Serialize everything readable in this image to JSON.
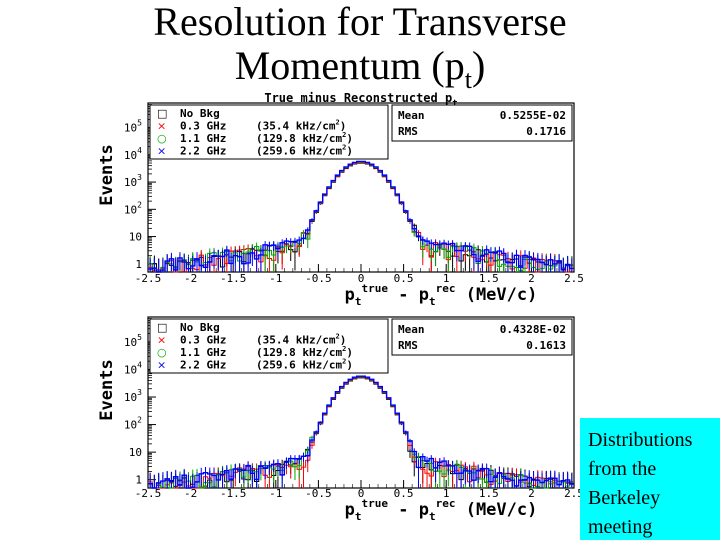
{
  "slide": {
    "title_line1": "Resolution for Transverse",
    "title_line2_pre": "Momentum (p",
    "title_line2_sub": "t",
    "title_line2_post": ")",
    "note_lines": [
      "Distributions",
      " from the",
      " Berkeley",
      " meeting"
    ]
  },
  "chart_data": [
    {
      "type": "histogram",
      "title": "True minus Reconstructed p",
      "title_sub": "t",
      "ylabel": "Events",
      "xlabel": {
        "p1": "p",
        "sub1": "t",
        "sup1": "true",
        "mid": " - ",
        "p2": "p",
        "sub2": "t",
        "sup2": "rec",
        "unit": " (MeV/c)"
      },
      "ylog": true,
      "xlim": [
        -2.5,
        2.5
      ],
      "ylim": [
        0.5,
        800000
      ],
      "xticks": [
        "-2.5",
        "-2",
        "-1.5",
        "-1",
        "-0.5",
        "0",
        "0.5",
        "1",
        "1.5",
        "2",
        "2.5"
      ],
      "yticks": [
        {
          "base": "1",
          "exp": ""
        },
        {
          "base": "10",
          "exp": ""
        },
        {
          "base": "10",
          "exp": "2"
        },
        {
          "base": "10",
          "exp": "3"
        },
        {
          "base": "10",
          "exp": "4"
        },
        {
          "base": "10",
          "exp": "5"
        }
      ],
      "legend": [
        {
          "symbol": "□",
          "name": "No Bkg",
          "rate": ""
        },
        {
          "symbol": "×",
          "name": "0.3 GHz",
          "rate": "(35.4 kHz/cm",
          "rate_sup": "2",
          "rate_end": ")"
        },
        {
          "symbol": "○",
          "name": "1.1 GHz",
          "rate": "(129.8 kHz/cm",
          "rate_sup": "2",
          "rate_end": ")"
        },
        {
          "symbol": "×",
          "name": "2.2 GHz",
          "rate": "(259.6 kHz/cm",
          "rate_sup": "2",
          "rate_end": ")"
        }
      ],
      "stats": [
        {
          "label": "Mean",
          "value": "0.5255E-02"
        },
        {
          "label": "RMS",
          "value": "0.1716"
        }
      ],
      "shape": {
        "peak": 5000,
        "core_sigma": 0.18,
        "tail_level": 10,
        "tail_scale": 0.9
      },
      "series": [
        {
          "name": "No Bkg",
          "color": "#000000"
        },
        {
          "name": "0.3 GHz",
          "color": "#ff0000"
        },
        {
          "name": "1.1 GHz",
          "color": "#00aa00"
        },
        {
          "name": "2.2 GHz",
          "color": "#0000ff"
        }
      ]
    },
    {
      "type": "histogram",
      "title": "",
      "title_sub": "",
      "ylabel": "Events",
      "xlabel": {
        "p1": "p",
        "sub1": "t",
        "sup1": "true",
        "mid": " - ",
        "p2": "p",
        "sub2": "t",
        "sup2": "rec",
        "unit": " (MeV/c)"
      },
      "ylog": true,
      "xlim": [
        -2.5,
        2.5
      ],
      "ylim": [
        0.5,
        800000
      ],
      "xticks": [
        "-2.5",
        "-2",
        "-1.5",
        "-1",
        "-0.5",
        "0",
        "0.5",
        "1",
        "1.5",
        "2",
        "2.5"
      ],
      "yticks": [
        {
          "base": "1",
          "exp": ""
        },
        {
          "base": "10",
          "exp": ""
        },
        {
          "base": "10",
          "exp": "2"
        },
        {
          "base": "10",
          "exp": "3"
        },
        {
          "base": "10",
          "exp": "4"
        },
        {
          "base": "10",
          "exp": "5"
        }
      ],
      "legend": [
        {
          "symbol": "□",
          "name": "No Bkg",
          "rate": ""
        },
        {
          "symbol": "×",
          "name": "0.3 GHz",
          "rate": "(35.4 kHz/cm",
          "rate_sup": "2",
          "rate_end": ")"
        },
        {
          "symbol": "○",
          "name": "1.1 GHz",
          "rate": "(129.8 kHz/cm",
          "rate_sup": "2",
          "rate_end": ")"
        },
        {
          "symbol": "×",
          "name": "2.2 GHz",
          "rate": "(259.6 kHz/cm",
          "rate_sup": "2",
          "rate_end": ")"
        }
      ],
      "stats": [
        {
          "label": "Mean",
          "value": "0.4328E-02"
        },
        {
          "label": "RMS",
          "value": "0.1613"
        }
      ],
      "shape": {
        "peak": 5000,
        "core_sigma": 0.17,
        "tail_level": 8,
        "tail_scale": 0.9
      },
      "series": [
        {
          "name": "No Bkg",
          "color": "#000000"
        },
        {
          "name": "0.3 GHz",
          "color": "#ff0000"
        },
        {
          "name": "1.1 GHz",
          "color": "#00aa00"
        },
        {
          "name": "2.2 GHz",
          "color": "#0000ff"
        }
      ]
    }
  ]
}
